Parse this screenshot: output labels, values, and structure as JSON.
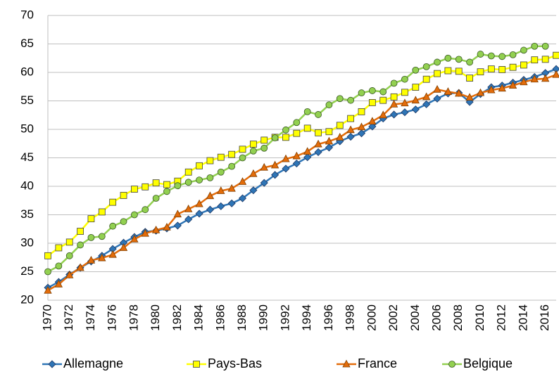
{
  "chart_data": {
    "type": "line",
    "categories": [
      "1970",
      null,
      "1972",
      null,
      "1974",
      null,
      "1976",
      null,
      "1978",
      null,
      "1980",
      null,
      "1982",
      null,
      "1984",
      null,
      "1986",
      null,
      "1988",
      null,
      "1990",
      null,
      "1992",
      null,
      "1994",
      null,
      "1996",
      null,
      "1998",
      null,
      "2000",
      null,
      "2002",
      null,
      "2004",
      null,
      "2006",
      null,
      "2008",
      null,
      "2010",
      null,
      "2012",
      null,
      "2014",
      null,
      "2016",
      null
    ],
    "series": [
      {
        "name": "Allemagne",
        "color": "#2e75b6",
        "marker": "diamond",
        "values": [
          22.2,
          23.2,
          24.5,
          25.7,
          26.8,
          27.8,
          29.0,
          30.1,
          31.1,
          32.0,
          32.2,
          32.6,
          33.1,
          34.2,
          35.2,
          35.9,
          36.5,
          37.0,
          37.9,
          39.3,
          40.6,
          42.0,
          43.1,
          44.0,
          45.1,
          46.0,
          46.8,
          47.9,
          48.7,
          49.3,
          50.5,
          51.9,
          52.6,
          53.0,
          53.5,
          54.4,
          55.4,
          56.3,
          56.4,
          54.8,
          56.2,
          57.4,
          57.7,
          58.2,
          58.7,
          59.2,
          59.9,
          60.6
        ]
      },
      {
        "name": "Pays-Bas",
        "color": "#ffff00",
        "marker": "square",
        "values": [
          27.8,
          29.2,
          30.2,
          32.1,
          34.3,
          35.5,
          37.2,
          38.4,
          39.5,
          39.9,
          40.6,
          40.3,
          40.9,
          42.5,
          43.6,
          44.5,
          45.1,
          45.6,
          46.5,
          47.4,
          48.1,
          48.6,
          48.6,
          49.3,
          50.2,
          49.4,
          49.6,
          50.7,
          51.9,
          53.1,
          54.7,
          55.1,
          55.7,
          56.5,
          57.4,
          58.8,
          59.8,
          60.3,
          60.2,
          59.0,
          60.1,
          60.6,
          60.5,
          60.9,
          61.3,
          62.2,
          62.3,
          63.0
        ]
      },
      {
        "name": "France",
        "color": "#e36c0a",
        "marker": "triangle",
        "values": [
          21.7,
          22.8,
          24.4,
          25.7,
          27.0,
          27.4,
          28.0,
          29.2,
          30.7,
          31.7,
          32.3,
          32.8,
          35.1,
          36.0,
          36.9,
          38.3,
          39.2,
          39.6,
          40.8,
          42.2,
          43.3,
          43.7,
          44.8,
          45.3,
          46.1,
          47.4,
          47.9,
          48.6,
          49.9,
          50.4,
          51.4,
          52.5,
          54.4,
          54.6,
          55.1,
          55.7,
          57.0,
          56.6,
          56.3,
          55.6,
          56.4,
          56.9,
          57.2,
          57.7,
          58.3,
          58.8,
          58.9,
          59.6
        ]
      },
      {
        "name": "Belgique",
        "color": "#92d050",
        "marker": "circle",
        "values": [
          25.0,
          26.0,
          27.8,
          29.7,
          31.0,
          31.2,
          33.0,
          33.8,
          35.0,
          35.9,
          37.9,
          39.1,
          40.1,
          40.7,
          41.1,
          41.5,
          42.5,
          43.5,
          45.0,
          46.2,
          46.7,
          48.5,
          49.9,
          51.2,
          53.1,
          52.6,
          54.3,
          55.4,
          55.1,
          56.4,
          56.8,
          56.6,
          58.1,
          58.8,
          60.4,
          61.0,
          61.8,
          62.5,
          62.3,
          61.8,
          63.2,
          62.9,
          62.8,
          63.1,
          63.9,
          64.6,
          64.6,
          null
        ]
      }
    ],
    "ylim": [
      20,
      70
    ],
    "yticks": [
      20,
      25,
      30,
      35,
      40,
      45,
      50,
      55,
      60,
      65,
      70
    ],
    "grid": true,
    "legend_position": "bottom"
  }
}
